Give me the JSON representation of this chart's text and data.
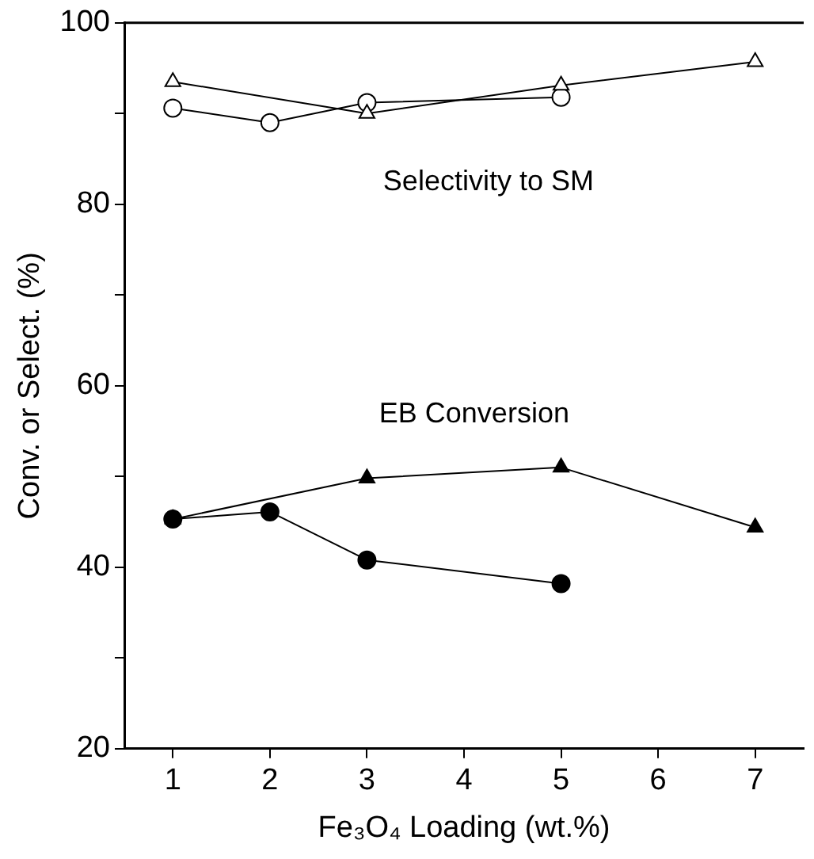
{
  "chart_data": {
    "type": "line",
    "xlabel": "Fe₃O₄ Loading (wt.%)",
    "ylabel": "Conv. or Select. (%)",
    "xlim": [
      0.5,
      7.5
    ],
    "xticks": [
      1,
      2,
      3,
      4,
      5,
      6,
      7
    ],
    "ylim": [
      20,
      100
    ],
    "yticks": [
      20,
      {
        "value": 30,
        "label": null
      },
      40,
      {
        "value": 50,
        "label": null
      },
      60,
      {
        "value": 70,
        "label": null
      },
      80,
      {
        "value": 90,
        "label": null
      },
      100
    ],
    "grid": false,
    "legend": false,
    "series": [
      {
        "color": "#000000",
        "marker": "triangle",
        "x": [
          1,
          3,
          5,
          7
        ],
        "values": [
          93.5,
          90.0,
          93.1,
          95.7
        ]
      },
      {
        "color": "#000000",
        "marker": "circle",
        "x": [
          1,
          2,
          3,
          5
        ],
        "values": [
          90.6,
          89.0,
          91.2,
          91.8
        ]
      },
      {
        "color": "#000000",
        "marker": "triangle",
        "x": [
          1,
          3,
          5,
          7
        ],
        "values": [
          45.3,
          49.8,
          51.0,
          44.4
        ]
      },
      {
        "color": "#000000",
        "marker": "circle",
        "x": [
          1,
          2,
          3,
          5
        ],
        "values": [
          45.3,
          46.1,
          40.8,
          38.2
        ]
      }
    ],
    "annotations": [
      "Selectivity to SM",
      "EB Conversion"
    ]
  }
}
